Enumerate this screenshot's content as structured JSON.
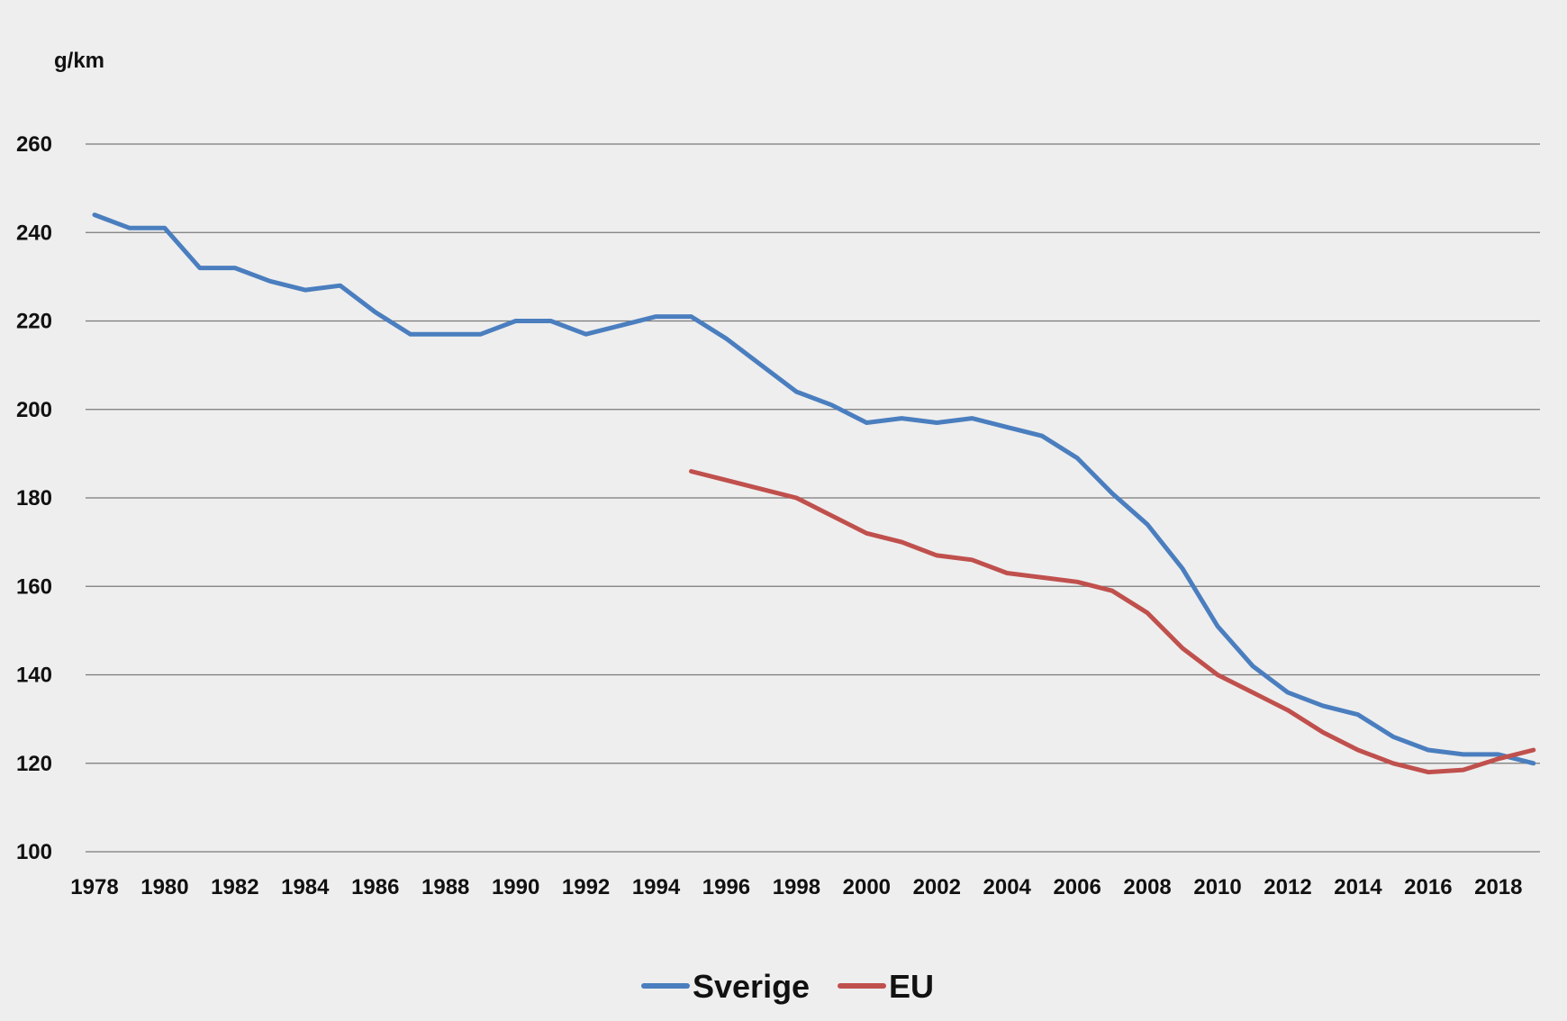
{
  "chart_data": {
    "type": "line",
    "title": "",
    "ylabel": "g/km",
    "xlabel": "",
    "ylim": [
      100,
      260
    ],
    "yticks": [
      "100",
      "120",
      "140",
      "160",
      "180",
      "200",
      "220",
      "240",
      "260"
    ],
    "xtick_labels": [
      "1978",
      "1980",
      "1982",
      "1984",
      "1986",
      "1988",
      "1990",
      "1992",
      "1994",
      "1996",
      "1998",
      "2000",
      "2002",
      "2004",
      "2006",
      "2008",
      "2010",
      "2012",
      "2014",
      "2016",
      "2018"
    ],
    "xlim": [
      1978,
      2019
    ],
    "grid": true,
    "legend_position": "bottom",
    "series": [
      {
        "name": "Sverige",
        "color": "#4a7ebf",
        "x": [
          1978,
          1979,
          1980,
          1981,
          1982,
          1983,
          1984,
          1985,
          1986,
          1987,
          1988,
          1989,
          1990,
          1991,
          1992,
          1993,
          1994,
          1995,
          1996,
          1997,
          1998,
          1999,
          2000,
          2001,
          2002,
          2003,
          2004,
          2005,
          2006,
          2007,
          2008,
          2009,
          2010,
          2011,
          2012,
          2013,
          2014,
          2015,
          2016,
          2017,
          2018,
          2019
        ],
        "values": [
          244,
          241,
          241,
          232,
          232,
          229,
          227,
          228,
          222,
          217,
          217,
          217,
          220,
          220,
          217,
          219,
          221,
          221,
          216,
          210,
          204,
          201,
          197,
          198,
          197,
          198,
          196,
          194,
          189,
          181,
          174,
          164,
          151,
          142,
          136,
          133,
          131,
          126,
          123,
          122,
          122,
          120
        ]
      },
      {
        "name": "EU",
        "color": "#c0504d",
        "x": [
          1995,
          1996,
          1997,
          1998,
          1999,
          2000,
          2001,
          2002,
          2003,
          2004,
          2005,
          2006,
          2007,
          2008,
          2009,
          2010,
          2011,
          2012,
          2013,
          2014,
          2015,
          2016,
          2017,
          2018,
          2019
        ],
        "values": [
          186,
          184,
          182,
          180,
          176,
          172,
          170,
          167,
          166,
          163,
          162,
          161,
          159,
          154,
          146,
          140,
          136,
          132,
          127,
          123,
          120,
          118,
          118.5,
          121,
          123
        ]
      }
    ]
  }
}
